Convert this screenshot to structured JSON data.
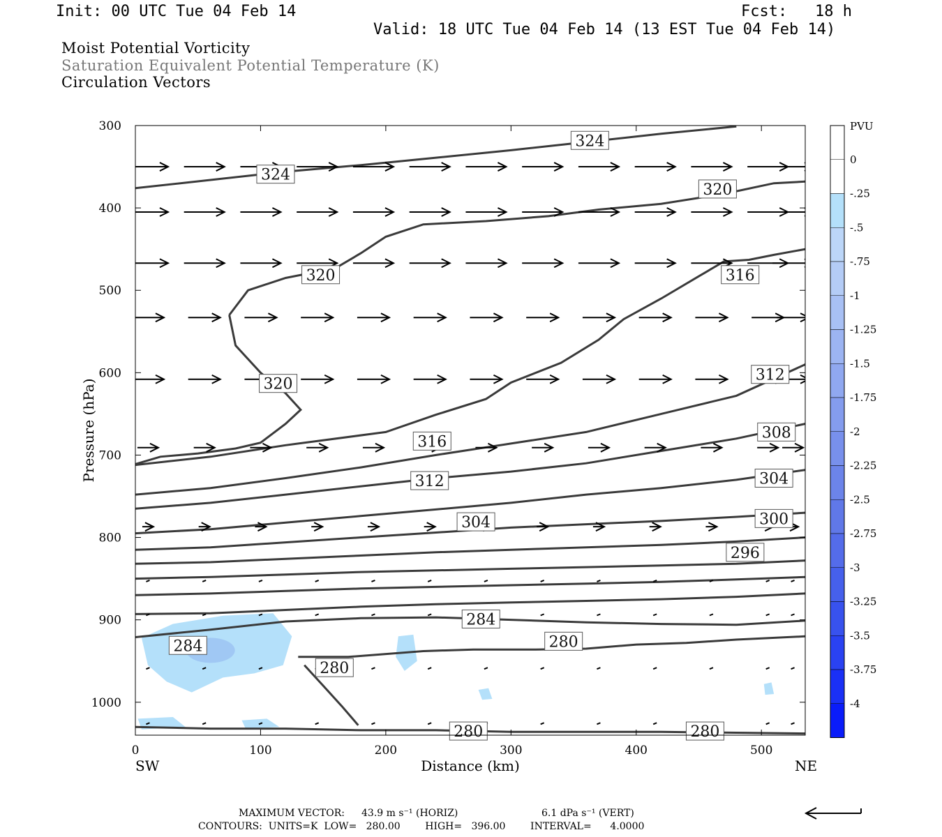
{
  "header": {
    "init": "Init: 00 UTC Tue 04 Feb 14",
    "fcst": "Fcst:   18 h",
    "valid": "Valid: 18 UTC Tue 04 Feb 14 (13 EST Tue 04 Feb 14)"
  },
  "titles": {
    "line1": "Moist Potential Vorticity",
    "line2": "Saturation Equivalent Potential Temperature (K)",
    "line3": "Circulation Vectors"
  },
  "footer": {
    "max_vector_label": "MAXIMUM VECTOR:",
    "max_horiz": "43.9 m s⁻¹ (HORIZ)",
    "max_vert": "6.1 dPa s⁻¹ (VERT)",
    "contours": "CONTOURS:  UNITS=K  LOW=   280.00        HIGH=   396.00        INTERVAL=      4.0000"
  },
  "colors": {
    "contour": "#3a3a3a",
    "arrow": "#000000",
    "pv_light": "#b4e0fa",
    "pv_mid": "#a0c8f4"
  },
  "chart_data": {
    "type": "cross-section",
    "xlabel": "Distance (km)",
    "ylabel": "Pressure (hPa)",
    "xlim": [
      0,
      535
    ],
    "ylim": [
      300,
      1040
    ],
    "x_ticks": [
      0,
      100,
      200,
      300,
      400,
      500
    ],
    "y_ticks": [
      300,
      400,
      500,
      600,
      700,
      800,
      900,
      1000
    ],
    "x_end_labels": {
      "left": "SW",
      "right": "NE"
    },
    "colorbar": {
      "unit": "PVU",
      "labels": [
        "0",
        "-.25",
        "-.5",
        "-.75",
        "-1",
        "-1.25",
        "-1.5",
        "-1.75",
        "-2",
        "-2.25",
        "-2.5",
        "-2.75",
        "-3",
        "-3.25",
        "-3.5",
        "-3.75",
        "-4"
      ],
      "colors": [
        "#ffffff",
        "#ffffff",
        "#b4e0fa",
        "#bcd6f8",
        "#b4ccf6",
        "#a8c0f4",
        "#9cb4f2",
        "#90a8f0",
        "#849cee",
        "#7890ec",
        "#6c84ea",
        "#6078e8",
        "#546cea",
        "#4660ec",
        "#3852ee",
        "#2a42f2",
        "#1a30f6",
        "#0a1cfa"
      ]
    },
    "theta_es_contours": [
      {
        "value": 324,
        "points": [
          [
            0,
            376
          ],
          [
            60,
            366
          ],
          [
            120,
            356
          ],
          [
            180,
            348
          ],
          [
            240,
            339
          ],
          [
            300,
            330
          ],
          [
            360,
            320
          ],
          [
            420,
            310
          ],
          [
            480,
            301
          ]
        ]
      },
      {
        "value": 320,
        "points": [
          [
            75,
            530
          ],
          [
            90,
            500
          ],
          [
            120,
            485
          ],
          [
            160,
            473
          ],
          [
            180,
            455
          ],
          [
            200,
            435
          ],
          [
            230,
            420
          ],
          [
            280,
            416
          ],
          [
            330,
            410
          ],
          [
            370,
            402
          ],
          [
            420,
            395
          ],
          [
            470,
            383
          ],
          [
            510,
            370
          ],
          [
            535,
            368
          ]
        ]
      },
      {
        "value": 320,
        "points": [
          [
            75,
            530
          ],
          [
            80,
            567
          ],
          [
            100,
            600
          ],
          [
            120,
            625
          ],
          [
            132,
            645
          ],
          [
            120,
            662
          ],
          [
            100,
            685
          ],
          [
            80,
            692
          ],
          [
            50,
            698
          ],
          [
            20,
            702
          ],
          [
            0,
            711
          ]
        ]
      },
      {
        "value": 316,
        "points": [
          [
            0,
            712
          ],
          [
            60,
            702
          ],
          [
            120,
            688
          ],
          [
            200,
            672
          ],
          [
            240,
            651
          ],
          [
            280,
            632
          ],
          [
            300,
            612
          ],
          [
            340,
            588
          ],
          [
            370,
            560
          ],
          [
            390,
            535
          ],
          [
            420,
            510
          ],
          [
            450,
            483
          ],
          [
            470,
            465
          ],
          [
            490,
            463
          ],
          [
            510,
            457
          ],
          [
            535,
            450
          ]
        ]
      },
      {
        "value": 312,
        "points": [
          [
            0,
            748
          ],
          [
            60,
            740
          ],
          [
            120,
            728
          ],
          [
            180,
            715
          ],
          [
            240,
            700
          ],
          [
            300,
            686
          ],
          [
            360,
            672
          ],
          [
            420,
            650
          ],
          [
            480,
            628
          ],
          [
            535,
            590
          ]
        ]
      },
      {
        "value": 308,
        "points": [
          [
            0,
            765
          ],
          [
            60,
            758
          ],
          [
            120,
            748
          ],
          [
            180,
            738
          ],
          [
            240,
            728
          ],
          [
            300,
            720
          ],
          [
            360,
            710
          ],
          [
            420,
            695
          ],
          [
            480,
            680
          ],
          [
            535,
            662
          ]
        ]
      },
      {
        "value": 304,
        "points": [
          [
            0,
            795
          ],
          [
            60,
            790
          ],
          [
            120,
            782
          ],
          [
            180,
            774
          ],
          [
            240,
            766
          ],
          [
            300,
            758
          ],
          [
            360,
            748
          ],
          [
            420,
            740
          ],
          [
            480,
            730
          ],
          [
            535,
            718
          ]
        ]
      },
      {
        "value": 300,
        "points": [
          [
            0,
            815
          ],
          [
            60,
            812
          ],
          [
            120,
            806
          ],
          [
            180,
            800
          ],
          [
            240,
            794
          ],
          [
            300,
            788
          ],
          [
            360,
            784
          ],
          [
            420,
            780
          ],
          [
            480,
            775
          ],
          [
            535,
            770
          ]
        ]
      },
      {
        "value": 296,
        "points": [
          [
            0,
            832
          ],
          [
            60,
            830
          ],
          [
            120,
            826
          ],
          [
            180,
            822
          ],
          [
            240,
            818
          ],
          [
            300,
            815
          ],
          [
            360,
            812
          ],
          [
            420,
            809
          ],
          [
            480,
            805
          ],
          [
            535,
            800
          ]
        ]
      },
      {
        "value": 292,
        "points": [
          [
            0,
            850
          ],
          [
            60,
            848
          ],
          [
            120,
            845
          ],
          [
            180,
            842
          ],
          [
            240,
            840
          ],
          [
            300,
            838
          ],
          [
            360,
            836
          ],
          [
            420,
            834
          ],
          [
            480,
            832
          ],
          [
            535,
            828
          ]
        ]
      },
      {
        "value": 288,
        "points": [
          [
            0,
            870
          ],
          [
            60,
            868
          ],
          [
            120,
            865
          ],
          [
            180,
            862
          ],
          [
            240,
            860
          ],
          [
            300,
            858
          ],
          [
            360,
            856
          ],
          [
            420,
            854
          ],
          [
            480,
            851
          ],
          [
            535,
            848
          ]
        ]
      },
      {
        "value": 284,
        "points": [
          [
            0,
            893
          ],
          [
            60,
            892
          ],
          [
            120,
            888
          ],
          [
            180,
            884
          ],
          [
            240,
            881
          ],
          [
            300,
            879
          ],
          [
            360,
            877
          ],
          [
            420,
            875
          ],
          [
            480,
            872
          ],
          [
            535,
            868
          ]
        ]
      },
      {
        "value": 280,
        "points": [
          [
            0,
            921
          ],
          [
            60,
            912
          ],
          [
            120,
            902
          ],
          [
            180,
            898
          ],
          [
            240,
            897
          ],
          [
            300,
            900
          ],
          [
            360,
            903
          ],
          [
            420,
            905
          ],
          [
            480,
            906
          ],
          [
            535,
            901
          ]
        ]
      },
      {
        "value": 280,
        "points": [
          [
            130,
            945
          ],
          [
            170,
            945
          ],
          [
            230,
            938
          ],
          [
            270,
            936
          ],
          [
            320,
            936
          ],
          [
            360,
            935
          ],
          [
            400,
            930
          ],
          [
            440,
            928
          ],
          [
            480,
            924
          ],
          [
            535,
            920
          ]
        ]
      },
      {
        "value": 280,
        "points": [
          [
            135,
            955
          ],
          [
            150,
            980
          ],
          [
            165,
            1005
          ],
          [
            178,
            1028
          ]
        ]
      },
      {
        "value": 280,
        "points": [
          [
            0,
            1030
          ],
          [
            60,
            1032
          ],
          [
            120,
            1032
          ],
          [
            180,
            1034
          ],
          [
            240,
            1034
          ],
          [
            300,
            1036
          ],
          [
            360,
            1036
          ],
          [
            420,
            1036
          ],
          [
            480,
            1037
          ],
          [
            535,
            1038
          ]
        ]
      }
    ],
    "contour_labels": [
      {
        "text": "324",
        "x": 363,
        "p": 318
      },
      {
        "text": "324",
        "x": 112,
        "p": 359
      },
      {
        "text": "320",
        "x": 465,
        "p": 377
      },
      {
        "text": "320",
        "x": 148,
        "p": 481
      },
      {
        "text": "316",
        "x": 483,
        "p": 481
      },
      {
        "text": "320",
        "x": 114,
        "p": 613
      },
      {
        "text": "312",
        "x": 507,
        "p": 602
      },
      {
        "text": "316",
        "x": 237,
        "p": 683
      },
      {
        "text": "308",
        "x": 512,
        "p": 672
      },
      {
        "text": "312",
        "x": 235,
        "p": 731
      },
      {
        "text": "304",
        "x": 510,
        "p": 728
      },
      {
        "text": "304",
        "x": 272,
        "p": 781
      },
      {
        "text": "300",
        "x": 510,
        "p": 777
      },
      {
        "text": "296",
        "x": 487,
        "p": 818
      },
      {
        "text": "284",
        "x": 42,
        "p": 931
      },
      {
        "text": "284",
        "x": 276,
        "p": 899
      },
      {
        "text": "280",
        "x": 342,
        "p": 926
      },
      {
        "text": "280",
        "x": 159,
        "p": 958
      },
      {
        "text": "280",
        "x": 266,
        "p": 1035
      },
      {
        "text": "280",
        "x": 455,
        "p": 1035
      }
    ],
    "vector_rows_hPa": [
      350,
      405,
      467,
      533,
      608,
      691,
      787,
      852,
      893,
      958,
      1025
    ],
    "vector_x_km": [
      10,
      55,
      100,
      145,
      190,
      235,
      280,
      325,
      370,
      415,
      460,
      505,
      525
    ],
    "vector_max_u": 43.9
  }
}
